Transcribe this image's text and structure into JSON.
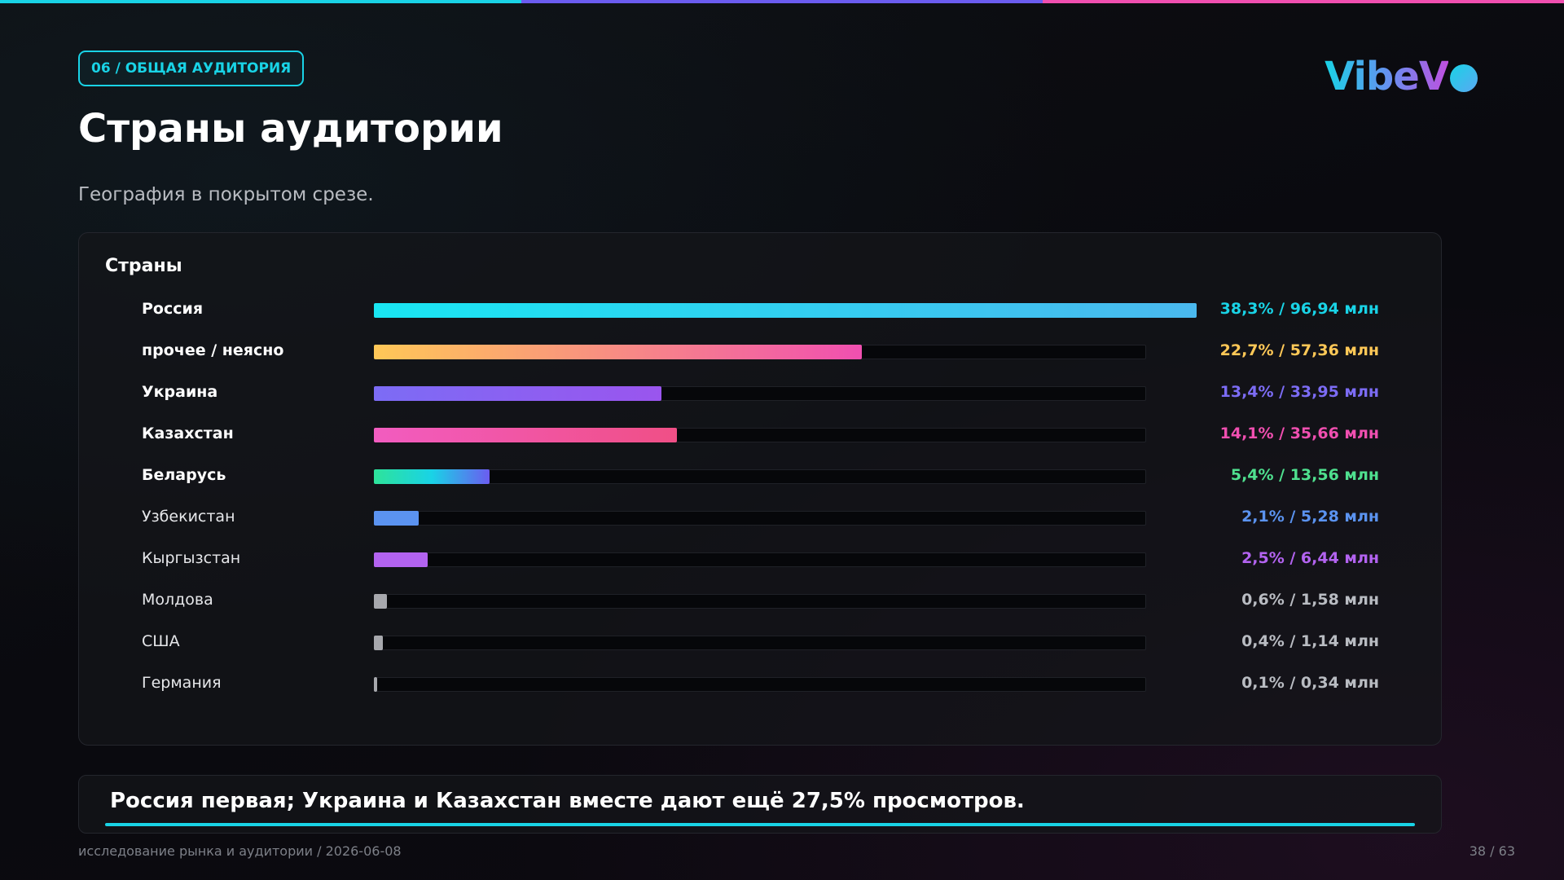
{
  "badge": "06 / ОБЩАЯ АУДИТОРИЯ",
  "logo": "VibeV",
  "title": "Страны аудитории",
  "subtitle": "География в покрытом срезе.",
  "callout": "Россия первая; Украина и Казахстан вместе дают ещё 27,5% просмотров.",
  "footer": {
    "left": "исследование рынка и аудитории / 2026-06-08",
    "right": "38 / 63"
  },
  "colors": {
    "accent": "#19d3e6",
    "purple": "#6b5cf0",
    "pink": "#f04fb0",
    "gray": "#b9bcc2"
  },
  "chart_data": {
    "type": "bar",
    "orientation": "horizontal",
    "title": "Страны",
    "xlim": [
      0,
      38.3
    ],
    "grid": false,
    "categories": [
      "Россия",
      "прочее / неясно",
      "Украина",
      "Казахстан",
      "Беларусь",
      "Узбекистан",
      "Кыргызстан",
      "Молдова",
      "США",
      "Германия"
    ],
    "values": [
      38.3,
      22.7,
      13.4,
      14.1,
      5.4,
      2.1,
      2.5,
      0.6,
      0.4,
      0.1
    ],
    "value_labels": [
      "38,3% / 96,94 млн",
      "22,7% / 57,36 млн",
      "13,4% / 33,95 млн",
      "14,1% / 35,66 млн",
      "5,4% / 13,56 млн",
      "2,1% / 5,28 млн",
      "2,5% / 6,44 млн",
      "0,6% / 1,58 млн",
      "0,4% / 1,14 млн",
      "0,1% / 0,34 млн"
    ],
    "bold": [
      true,
      true,
      true,
      true,
      true,
      false,
      false,
      false,
      false,
      false
    ],
    "bar_colors": [
      [
        "#19e6f2",
        "#4ab8ee"
      ],
      [
        "#ffc857",
        "#f04fb0"
      ],
      [
        "#7c6cf5",
        "#9a55ee"
      ],
      [
        "#f25cc0",
        "#f04f86"
      ],
      [
        "#2ee39a",
        "#19d3e6",
        "#6b5cf0"
      ],
      [
        "#5b93f0",
        "#5b93f0"
      ],
      [
        "#b363f0",
        "#b363f0"
      ],
      [
        "#a7a8ad",
        "#a7a8ad"
      ],
      [
        "#a7a8ad",
        "#a7a8ad"
      ],
      [
        "#a7a8ad",
        "#a7a8ad"
      ]
    ],
    "label_colors": [
      "#19d3e6",
      "#ffc857",
      "#7c6cf5",
      "#f04fb0",
      "#4fe08f",
      "#5b93f0",
      "#b363f0",
      "#b9bcc2",
      "#b9bcc2",
      "#b9bcc2"
    ]
  }
}
